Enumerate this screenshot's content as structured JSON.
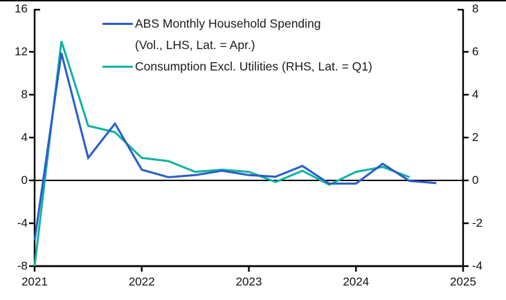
{
  "chart_data": {
    "type": "line",
    "title": "",
    "xlabel": "",
    "ylabel_left": "",
    "ylabel_right": "",
    "grid": false,
    "zero_line": true,
    "legend_position": "top-center",
    "x_axis": {
      "range": [
        2021,
        2025
      ],
      "ticks": [
        "2021",
        "2022",
        "2023",
        "2024",
        "2025"
      ],
      "tick_values": [
        2021,
        2022,
        2023,
        2024,
        2025
      ]
    },
    "left_axis": {
      "range": [
        -8,
        16
      ],
      "ticks": [
        "16",
        "12",
        "8",
        "4",
        "0",
        "-4",
        "-8"
      ],
      "tick_values": [
        16,
        12,
        8,
        4,
        0,
        -4,
        -8
      ]
    },
    "right_axis": {
      "range": [
        -4,
        8
      ],
      "ticks": [
        "8",
        "6",
        "4",
        "2",
        "0",
        "-2",
        "-4"
      ],
      "tick_values": [
        8,
        6,
        4,
        2,
        0,
        -2,
        -4
      ]
    },
    "series": [
      {
        "name": "consumption-excl-utilities",
        "legend_lines": [
          "Consumption Excl. Utilities (RHS, Lat. = Q1)"
        ],
        "axis": "right",
        "color": "#12b2a2",
        "x": [
          2021.0,
          2021.25,
          2021.5,
          2021.75,
          2022.0,
          2022.25,
          2022.5,
          2022.75,
          2023.0,
          2023.25,
          2023.5,
          2023.75,
          2024.0,
          2024.25,
          2024.5
        ],
        "values": [
          -4.0,
          6.5,
          2.55,
          2.25,
          1.05,
          0.9,
          0.4,
          0.5,
          0.4,
          -0.07,
          0.45,
          -0.2,
          0.4,
          0.63,
          0.15
        ]
      },
      {
        "name": "abs-monthly-household-spending",
        "legend_lines": [
          "ABS Monthly Household Spending",
          "(Vol., LHS, Lat. = Apr.)"
        ],
        "axis": "left",
        "color": "#2a5dc6",
        "x": [
          2021.0,
          2021.25,
          2021.5,
          2021.75,
          2022.0,
          2022.25,
          2022.5,
          2022.75,
          2023.0,
          2023.25,
          2023.5,
          2023.75,
          2024.0,
          2024.25,
          2024.5,
          2024.75
        ],
        "values": [
          -5.6,
          11.9,
          2.1,
          5.3,
          1.0,
          0.3,
          0.5,
          0.9,
          0.5,
          0.35,
          1.35,
          -0.3,
          -0.3,
          1.55,
          -0.05,
          -0.25
        ]
      }
    ]
  },
  "colors": {
    "axis": "#000000",
    "tick_text": "#111111",
    "legend_text": "#1c1c1c",
    "background": "#ffffff",
    "top_border": "#000000"
  }
}
